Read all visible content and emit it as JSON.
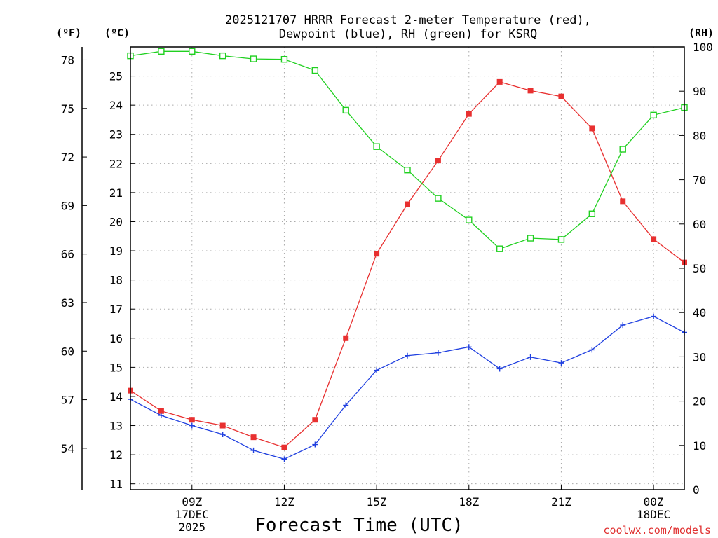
{
  "chart_data": {
    "type": "line",
    "title_lines": [
      "2025121707 HRRR Forecast 2-meter Temperature (red),",
      "Dewpoint (blue), RH (green) for KSRQ"
    ],
    "xlabel": "Forecast Time (UTC)",
    "credit": "coolwx.com/models",
    "units": {
      "f": "(ºF)",
      "c": "(ºC)",
      "rh": "(RH)"
    },
    "x_hours": [
      7,
      8,
      9,
      10,
      11,
      12,
      13,
      14,
      15,
      16,
      17,
      18,
      19,
      20,
      21,
      22,
      23,
      24,
      25
    ],
    "xlim": [
      7,
      25
    ],
    "x_ticks": [
      {
        "hour": 9,
        "lines": [
          "09Z",
          "17DEC",
          "2025"
        ]
      },
      {
        "hour": 12,
        "lines": [
          "12Z"
        ]
      },
      {
        "hour": 15,
        "lines": [
          "15Z"
        ]
      },
      {
        "hour": 18,
        "lines": [
          "18Z"
        ]
      },
      {
        "hour": 21,
        "lines": [
          "21Z"
        ]
      },
      {
        "hour": 24,
        "lines": [
          "00Z",
          "18DEC"
        ]
      }
    ],
    "ylim_c": [
      10.8,
      26
    ],
    "y_ticks_c": [
      11,
      12,
      13,
      14,
      15,
      16,
      17,
      18,
      19,
      20,
      21,
      22,
      23,
      24,
      25
    ],
    "y_ticks_f": [
      54,
      57,
      60,
      63,
      66,
      69,
      72,
      75,
      78
    ],
    "ylim_rh": [
      0,
      100
    ],
    "y_ticks_rh": [
      0,
      10,
      20,
      30,
      40,
      50,
      60,
      70,
      80,
      90,
      100
    ],
    "series": [
      {
        "name": "Temperature",
        "axis": "c",
        "color": "#e83030",
        "marker": "filled-square",
        "values": [
          14.2,
          13.5,
          13.2,
          13.0,
          12.6,
          12.25,
          13.2,
          16.0,
          18.9,
          20.6,
          22.1,
          23.7,
          24.8,
          24.5,
          24.3,
          23.2,
          20.7,
          19.4,
          18.6
        ]
      },
      {
        "name": "Dewpoint",
        "axis": "c",
        "color": "#2040e0",
        "marker": "plus",
        "values": [
          13.9,
          13.35,
          13.0,
          12.7,
          12.15,
          11.85,
          12.35,
          13.7,
          14.9,
          15.4,
          15.5,
          15.7,
          14.95,
          15.35,
          15.15,
          15.6,
          16.45,
          16.75,
          16.2
        ]
      },
      {
        "name": "RH",
        "axis": "rh",
        "color": "#20d020",
        "marker": "open-square",
        "values": [
          98,
          99,
          99,
          98,
          97.3,
          97.2,
          94.7,
          85.7,
          77.5,
          72.2,
          65.8,
          60.9,
          54.4,
          56.8,
          56.5,
          62.3,
          76.9,
          84.6,
          86.3
        ]
      }
    ]
  }
}
